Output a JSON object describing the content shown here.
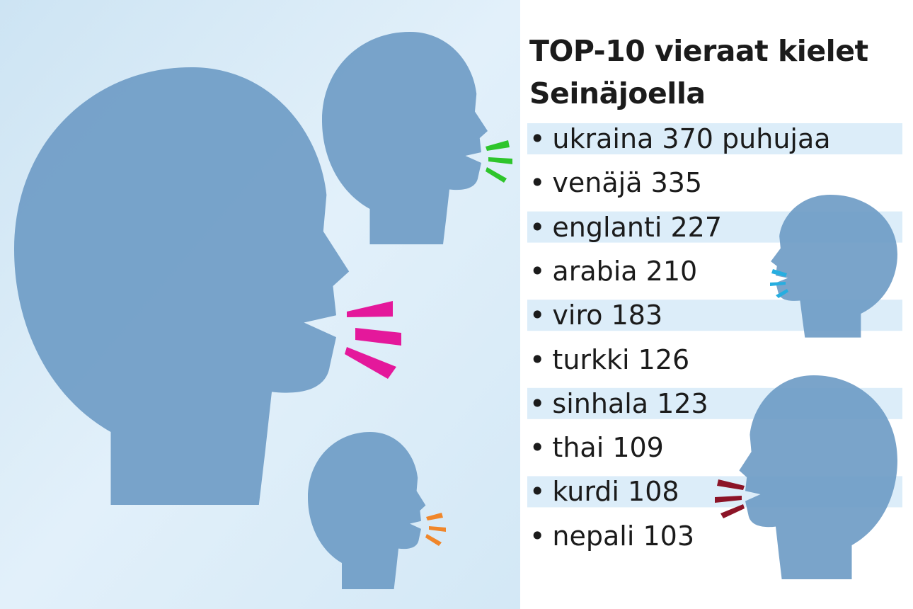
{
  "title_lines": [
    "TOP-10 vieraat kielet",
    "Seinäjoella"
  ],
  "items": [
    "ukraina 370 puhujaa",
    "venäjä 335",
    "englanti 227",
    "arabia 210",
    "viro 183",
    "turkki 126",
    "sinhala 123",
    "thai 109",
    "kurdi 108",
    "nepali 103"
  ]
}
